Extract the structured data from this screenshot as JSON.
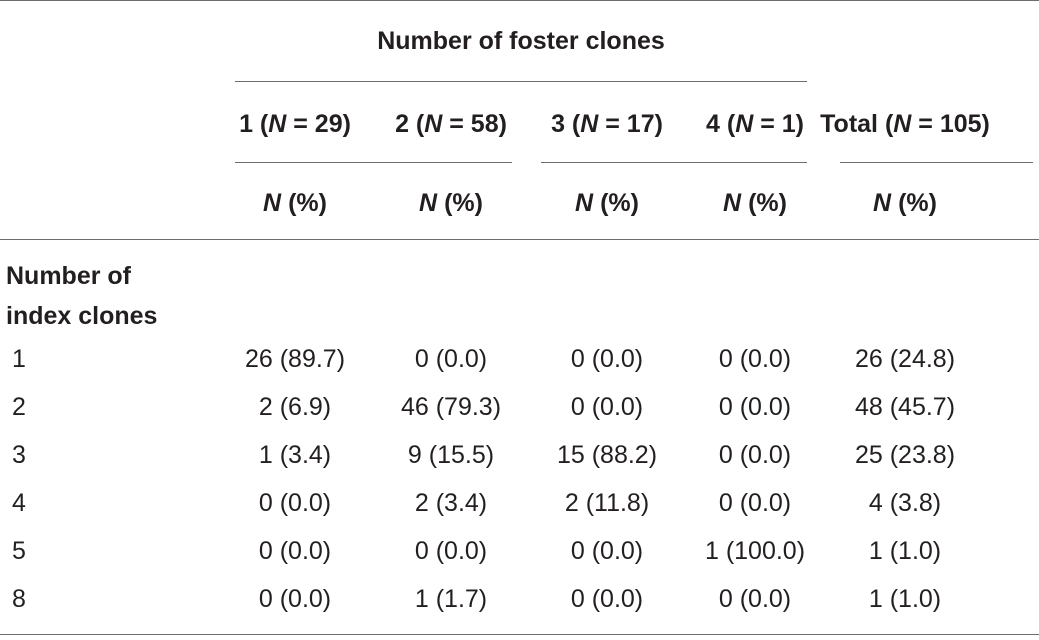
{
  "header": {
    "group_title": "Number of foster clones",
    "columns": [
      {
        "prefix": "1 (",
        "n_symbol": "N",
        "suffix": " = 29)"
      },
      {
        "prefix": "2 (",
        "n_symbol": "N",
        "suffix": " = 58)"
      },
      {
        "prefix": "3 (",
        "n_symbol": "N",
        "suffix": " = 17)"
      },
      {
        "prefix": "4 (",
        "n_symbol": "N",
        "suffix": " = 1)"
      },
      {
        "prefix": "Total (",
        "n_symbol": "N",
        "suffix": " = 105)"
      }
    ],
    "subheader": {
      "n_symbol": "N",
      "suffix": " (%)"
    }
  },
  "section_label": {
    "line1": "Number of",
    "line2": "index clones"
  },
  "rows": [
    {
      "label": "1",
      "cells": [
        "26 (89.7)",
        "0 (0.0)",
        "0 (0.0)",
        "0 (0.0)",
        "26 (24.8)"
      ]
    },
    {
      "label": "2",
      "cells": [
        "2 (6.9)",
        "46 (79.3)",
        "0 (0.0)",
        "0 (0.0)",
        "48 (45.7)"
      ]
    },
    {
      "label": "3",
      "cells": [
        "1 (3.4)",
        "9 (15.5)",
        "15 (88.2)",
        "0 (0.0)",
        "25 (23.8)"
      ]
    },
    {
      "label": "4",
      "cells": [
        "0 (0.0)",
        "2 (3.4)",
        "2 (11.8)",
        "0 (0.0)",
        "4 (3.8)"
      ]
    },
    {
      "label": "5",
      "cells": [
        "0 (0.0)",
        "0 (0.0)",
        "0 (0.0)",
        "1 (100.0)",
        "1 (1.0)"
      ]
    },
    {
      "label": "8",
      "cells": [
        "0 (0.0)",
        "1 (1.7)",
        "0 (0.0)",
        "0 (0.0)",
        "1 (1.0)"
      ]
    }
  ]
}
